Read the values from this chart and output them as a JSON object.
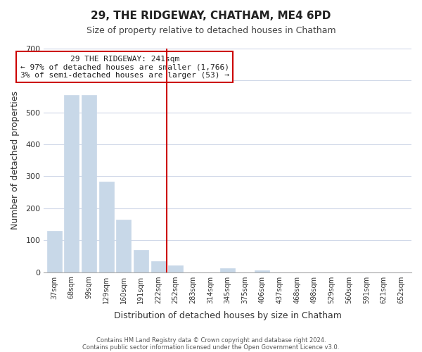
{
  "title": "29, THE RIDGEWAY, CHATHAM, ME4 6PD",
  "subtitle": "Size of property relative to detached houses in Chatham",
  "xlabel": "Distribution of detached houses by size in Chatham",
  "ylabel": "Number of detached properties",
  "bar_labels": [
    "37sqm",
    "68sqm",
    "99sqm",
    "129sqm",
    "160sqm",
    "191sqm",
    "222sqm",
    "252sqm",
    "283sqm",
    "314sqm",
    "345sqm",
    "375sqm",
    "406sqm",
    "437sqm",
    "468sqm",
    "498sqm",
    "529sqm",
    "560sqm",
    "591sqm",
    "621sqm",
    "652sqm"
  ],
  "bar_values": [
    130,
    555,
    555,
    283,
    165,
    70,
    35,
    20,
    0,
    0,
    12,
    0,
    5,
    0,
    0,
    0,
    0,
    0,
    0,
    0,
    0
  ],
  "bar_color": "#c8d8e8",
  "vline_x": 7,
  "vline_color": "#cc0000",
  "ylim": [
    0,
    700
  ],
  "yticks": [
    0,
    100,
    200,
    300,
    400,
    500,
    600,
    700
  ],
  "annotation_title": "29 THE RIDGEWAY: 241sqm",
  "annotation_line1": "← 97% of detached houses are smaller (1,766)",
  "annotation_line2": "3% of semi-detached houses are larger (53) →",
  "annotation_box_color": "#ffffff",
  "annotation_box_edge": "#cc0000",
  "footer1": "Contains HM Land Registry data © Crown copyright and database right 2024.",
  "footer2": "Contains public sector information licensed under the Open Government Licence v3.0.",
  "background_color": "#ffffff",
  "grid_color": "#d0d8e8"
}
